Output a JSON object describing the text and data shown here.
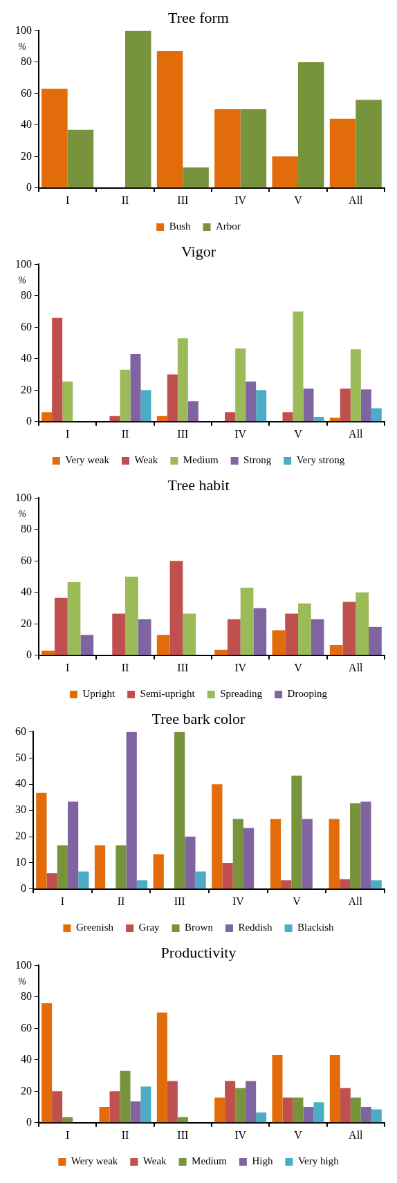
{
  "chart_data": [
    {
      "type": "bar",
      "title": "Tree form",
      "ylabel": "%",
      "categories": [
        "I",
        "II",
        "III",
        "IV",
        "V",
        "All"
      ],
      "ylim": [
        0,
        100
      ],
      "yticks": [
        0,
        20,
        40,
        60,
        80,
        100
      ],
      "grid": false,
      "legend": "bottom",
      "series": [
        {
          "name": "Bush",
          "color": "#e36c0a",
          "values": [
            63,
            0,
            87,
            50,
            20,
            44
          ]
        },
        {
          "name": "Arbor",
          "color": "#77933c",
          "values": [
            37,
            100,
            13,
            50,
            80,
            56
          ]
        }
      ]
    },
    {
      "type": "bar",
      "title": "Vigor",
      "ylabel": "%",
      "categories": [
        "I",
        "II",
        "III",
        "IV",
        "V",
        "All"
      ],
      "ylim": [
        0,
        100
      ],
      "yticks": [
        0,
        20,
        40,
        60,
        80,
        100
      ],
      "grid": false,
      "legend": "bottom",
      "series": [
        {
          "name": "Very weak",
          "color": "#e36c0a",
          "values": [
            6,
            0,
            3.5,
            0,
            0,
            2.5
          ]
        },
        {
          "name": "Weak",
          "color": "#c0504d",
          "values": [
            66,
            3.5,
            30,
            6,
            6,
            21
          ]
        },
        {
          "name": "Medium",
          "color": "#9bbb59",
          "values": [
            25.5,
            33,
            53,
            46.5,
            70,
            46
          ]
        },
        {
          "name": "Strong",
          "color": "#8064a2",
          "values": [
            0,
            43,
            13,
            25.5,
            21,
            20.5
          ]
        },
        {
          "name": "Very strong",
          "color": "#4bacc6",
          "values": [
            0,
            20,
            0,
            20,
            3,
            8.5
          ]
        }
      ]
    },
    {
      "type": "bar",
      "title": "Tree habit",
      "ylabel": "%",
      "categories": [
        "I",
        "II",
        "III",
        "IV",
        "V",
        "All"
      ],
      "ylim": [
        0,
        100
      ],
      "yticks": [
        0,
        20,
        40,
        60,
        80,
        100
      ],
      "grid": false,
      "legend": "bottom",
      "series": [
        {
          "name": "Upright",
          "color": "#e36c0a",
          "values": [
            3,
            0,
            13,
            3.5,
            16,
            6.5
          ]
        },
        {
          "name": "Semi-upright",
          "color": "#c0504d",
          "values": [
            36.5,
            26.5,
            60,
            23,
            26.5,
            34
          ]
        },
        {
          "name": "Spreading",
          "color": "#9bbb59",
          "values": [
            46.5,
            50,
            26.5,
            43,
            33,
            40
          ]
        },
        {
          "name": "Drooping",
          "color": "#8064a2",
          "values": [
            13,
            23,
            0,
            30,
            23,
            18
          ]
        }
      ]
    },
    {
      "type": "bar",
      "title": "Tree bark color",
      "categories": [
        "I",
        "II",
        "III",
        "IV",
        "V",
        "All"
      ],
      "ylim": [
        0,
        60
      ],
      "yticks": [
        0,
        10,
        20,
        30,
        40,
        50,
        60
      ],
      "grid": false,
      "legend": "bottom",
      "series": [
        {
          "name": "Greenish",
          "color": "#e36c0a",
          "values": [
            36.7,
            16.7,
            13.3,
            40,
            26.7,
            26.7
          ]
        },
        {
          "name": "Gray",
          "color": "#c0504d",
          "values": [
            6,
            0,
            0,
            10,
            3.3,
            3.8
          ]
        },
        {
          "name": "Brown",
          "color": "#77933c",
          "values": [
            16.7,
            16.7,
            60,
            26.7,
            43.3,
            32.7
          ]
        },
        {
          "name": "Reddish",
          "color": "#8064a2",
          "values": [
            33.3,
            60,
            20,
            23.3,
            26.7,
            33.3
          ]
        },
        {
          "name": "Blackish",
          "color": "#4bacc6",
          "values": [
            6.7,
            3.3,
            6.7,
            0,
            0,
            3.3
          ]
        }
      ]
    },
    {
      "type": "bar",
      "title": "Productivity",
      "ylabel": "%",
      "categories": [
        "I",
        "II",
        "III",
        "IV",
        "V",
        "All"
      ],
      "ylim": [
        0,
        100
      ],
      "yticks": [
        0,
        20,
        40,
        60,
        80,
        100
      ],
      "grid": false,
      "legend": "bottom",
      "series": [
        {
          "name": "Wery weak",
          "color": "#e36c0a",
          "values": [
            76,
            10,
            70,
            16,
            43,
            43
          ]
        },
        {
          "name": "Weak",
          "color": "#c0504d",
          "values": [
            20,
            20,
            26.5,
            26.5,
            16,
            22
          ]
        },
        {
          "name": "Medium",
          "color": "#77933c",
          "values": [
            3.5,
            33,
            3.5,
            22,
            16,
            16
          ]
        },
        {
          "name": "High",
          "color": "#8064a2",
          "values": [
            0,
            13.5,
            0,
            26.5,
            10,
            10
          ]
        },
        {
          "name": "Very high",
          "color": "#4bacc6",
          "values": [
            0,
            23,
            0,
            6.5,
            13,
            8.5
          ]
        }
      ]
    }
  ]
}
